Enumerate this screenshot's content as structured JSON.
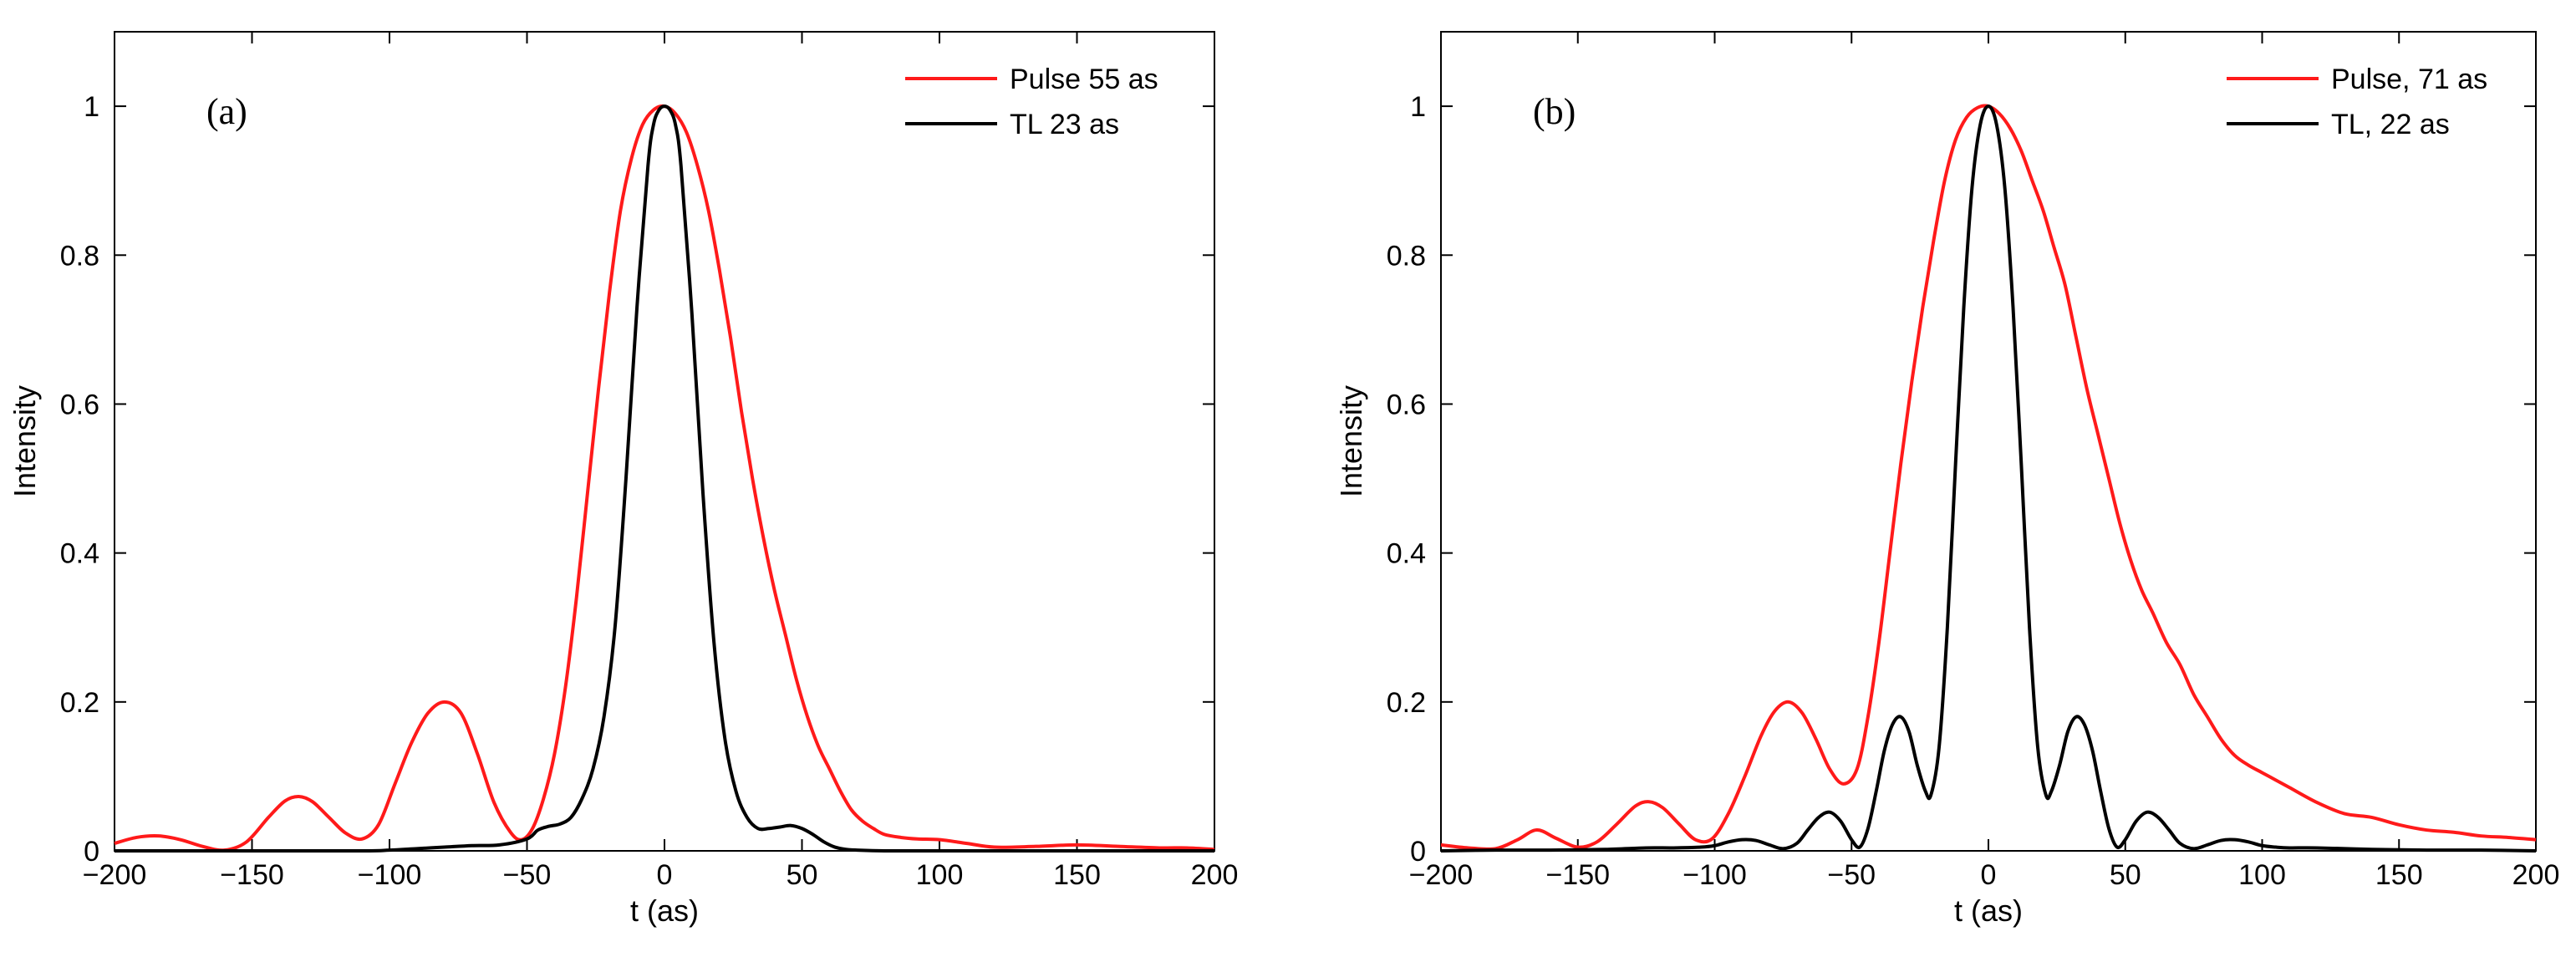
{
  "chart_data": [
    {
      "type": "line",
      "panel_label": "(a)",
      "xlabel": "t (as)",
      "ylabel": "Intensity",
      "xlim": [
        -200,
        200
      ],
      "ylim": [
        0,
        1.1
      ],
      "xticks": [
        -200,
        -150,
        -100,
        -50,
        0,
        50,
        100,
        150,
        200
      ],
      "xtick_labels": [
        "−200",
        "−150",
        "−100",
        "−50",
        "0",
        "50",
        "100",
        "150",
        "200"
      ],
      "yticks": [
        0,
        0.2,
        0.4,
        0.6,
        0.8,
        1
      ],
      "ytick_labels": [
        "0",
        "0.2",
        "0.4",
        "0.6",
        "0.8",
        "1"
      ],
      "legend_position": "top-right",
      "series": [
        {
          "name": "Pulse 55 as",
          "color": "#ff1a1a",
          "x": [
            -200,
            -192,
            -184,
            -176,
            -168,
            -160,
            -152,
            -144,
            -138,
            -133,
            -128,
            -122,
            -116,
            -110,
            -104,
            -98,
            -92,
            -86,
            -80,
            -74,
            -68,
            -62,
            -56,
            -52,
            -48,
            -44,
            -40,
            -36,
            -32,
            -28,
            -24,
            -20,
            -16,
            -12,
            -8,
            -4,
            0,
            4,
            8,
            12,
            16,
            20,
            24,
            28,
            32,
            36,
            40,
            44,
            48,
            52,
            56,
            60,
            64,
            68,
            72,
            76,
            80,
            86,
            92,
            100,
            110,
            120,
            135,
            150,
            165,
            180,
            190,
            200
          ],
          "y": [
            0.01,
            0.018,
            0.02,
            0.015,
            0.006,
            0.001,
            0.012,
            0.045,
            0.067,
            0.073,
            0.066,
            0.045,
            0.024,
            0.016,
            0.035,
            0.09,
            0.145,
            0.185,
            0.2,
            0.185,
            0.13,
            0.065,
            0.025,
            0.015,
            0.03,
            0.07,
            0.13,
            0.22,
            0.34,
            0.48,
            0.62,
            0.75,
            0.86,
            0.93,
            0.975,
            0.995,
            1.0,
            0.99,
            0.965,
            0.92,
            0.86,
            0.78,
            0.69,
            0.59,
            0.5,
            0.42,
            0.35,
            0.29,
            0.23,
            0.18,
            0.14,
            0.11,
            0.08,
            0.055,
            0.04,
            0.03,
            0.022,
            0.018,
            0.016,
            0.015,
            0.01,
            0.005,
            0.006,
            0.008,
            0.006,
            0.004,
            0.004,
            0.002
          ]
        },
        {
          "name": "TL 23 as",
          "color": "#000000",
          "x": [
            -200,
            -150,
            -110,
            -100,
            -90,
            -80,
            -70,
            -60,
            -50,
            -46,
            -42,
            -38,
            -34,
            -30,
            -26,
            -22,
            -18,
            -14,
            -10,
            -6,
            -4,
            -2,
            0,
            2,
            4,
            6,
            10,
            14,
            18,
            22,
            26,
            30,
            34,
            38,
            42,
            46,
            50,
            54,
            58,
            62,
            66,
            70,
            80,
            100,
            150,
            200
          ],
          "y": [
            0.0,
            0.0,
            0.0,
            0.001,
            0.003,
            0.005,
            0.007,
            0.008,
            0.016,
            0.028,
            0.033,
            0.036,
            0.045,
            0.07,
            0.11,
            0.18,
            0.3,
            0.5,
            0.73,
            0.92,
            0.975,
            0.995,
            1.0,
            0.995,
            0.975,
            0.92,
            0.72,
            0.48,
            0.28,
            0.15,
            0.08,
            0.045,
            0.03,
            0.03,
            0.032,
            0.034,
            0.03,
            0.022,
            0.012,
            0.005,
            0.002,
            0.001,
            0.0,
            0.0,
            0.0,
            0.0
          ]
        }
      ]
    },
    {
      "type": "line",
      "panel_label": "(b)",
      "xlabel": "t (as)",
      "ylabel": "Intensity",
      "xlim": [
        -200,
        200
      ],
      "ylim": [
        0,
        1.1
      ],
      "xticks": [
        -200,
        -150,
        -100,
        -50,
        0,
        50,
        100,
        150,
        200
      ],
      "xtick_labels": [
        "−200",
        "−150",
        "−100",
        "−50",
        "0",
        "50",
        "100",
        "150",
        "200"
      ],
      "yticks": [
        0,
        0.2,
        0.4,
        0.6,
        0.8,
        1
      ],
      "ytick_labels": [
        "0",
        "0.2",
        "0.4",
        "0.6",
        "0.8",
        "1"
      ],
      "legend_position": "top-right",
      "series": [
        {
          "name": "Pulse, 71 as",
          "color": "#ff1a1a",
          "x": [
            -200,
            -190,
            -180,
            -172,
            -165,
            -158,
            -150,
            -143,
            -136,
            -129,
            -124,
            -119,
            -113,
            -107,
            -101,
            -95,
            -89,
            -83,
            -78,
            -73,
            -68,
            -63,
            -58,
            -53,
            -48,
            -44,
            -40,
            -36,
            -32,
            -28,
            -24,
            -20,
            -16,
            -12,
            -8,
            -4,
            0,
            4,
            8,
            12,
            16,
            20,
            24,
            28,
            32,
            36,
            40,
            44,
            48,
            52,
            56,
            60,
            65,
            70,
            75,
            80,
            85,
            90,
            95,
            100,
            105,
            110,
            120,
            130,
            140,
            150,
            160,
            170,
            180,
            190,
            200
          ],
          "y": [
            0.008,
            0.004,
            0.003,
            0.015,
            0.028,
            0.017,
            0.005,
            0.012,
            0.035,
            0.06,
            0.066,
            0.058,
            0.036,
            0.015,
            0.016,
            0.05,
            0.1,
            0.155,
            0.188,
            0.2,
            0.185,
            0.15,
            0.11,
            0.09,
            0.11,
            0.18,
            0.28,
            0.4,
            0.52,
            0.63,
            0.73,
            0.82,
            0.9,
            0.955,
            0.985,
            0.998,
            1.0,
            0.99,
            0.97,
            0.94,
            0.9,
            0.86,
            0.81,
            0.76,
            0.69,
            0.62,
            0.56,
            0.5,
            0.44,
            0.39,
            0.35,
            0.32,
            0.28,
            0.25,
            0.21,
            0.18,
            0.15,
            0.128,
            0.115,
            0.105,
            0.095,
            0.085,
            0.065,
            0.05,
            0.045,
            0.035,
            0.028,
            0.025,
            0.02,
            0.018,
            0.015
          ]
        },
        {
          "name": "TL, 22 as",
          "color": "#000000",
          "x": [
            -200,
            -180,
            -160,
            -140,
            -125,
            -115,
            -105,
            -100,
            -95,
            -90,
            -85,
            -80,
            -75,
            -70,
            -66,
            -62,
            -58,
            -54,
            -50,
            -47,
            -44,
            -41,
            -38,
            -35,
            -32,
            -29,
            -26,
            -23,
            -21,
            -18,
            -15,
            -12,
            -9,
            -6,
            -3,
            0,
            3,
            6,
            9,
            12,
            15,
            18,
            21,
            23,
            26,
            29,
            32,
            35,
            38,
            41,
            44,
            47,
            50,
            54,
            58,
            62,
            66,
            70,
            75,
            80,
            85,
            90,
            95,
            100,
            105,
            110,
            120,
            140,
            160,
            180,
            200
          ],
          "y": [
            0.0,
            0.001,
            0.001,
            0.002,
            0.004,
            0.004,
            0.005,
            0.007,
            0.012,
            0.015,
            0.014,
            0.008,
            0.003,
            0.01,
            0.028,
            0.045,
            0.052,
            0.04,
            0.015,
            0.005,
            0.03,
            0.08,
            0.135,
            0.17,
            0.18,
            0.16,
            0.115,
            0.08,
            0.075,
            0.14,
            0.3,
            0.52,
            0.73,
            0.89,
            0.975,
            1.0,
            0.975,
            0.89,
            0.73,
            0.52,
            0.3,
            0.14,
            0.075,
            0.08,
            0.115,
            0.16,
            0.18,
            0.17,
            0.135,
            0.08,
            0.03,
            0.005,
            0.015,
            0.04,
            0.052,
            0.045,
            0.028,
            0.01,
            0.003,
            0.008,
            0.014,
            0.015,
            0.012,
            0.007,
            0.005,
            0.004,
            0.004,
            0.002,
            0.001,
            0.001,
            0.0
          ]
        }
      ]
    }
  ]
}
